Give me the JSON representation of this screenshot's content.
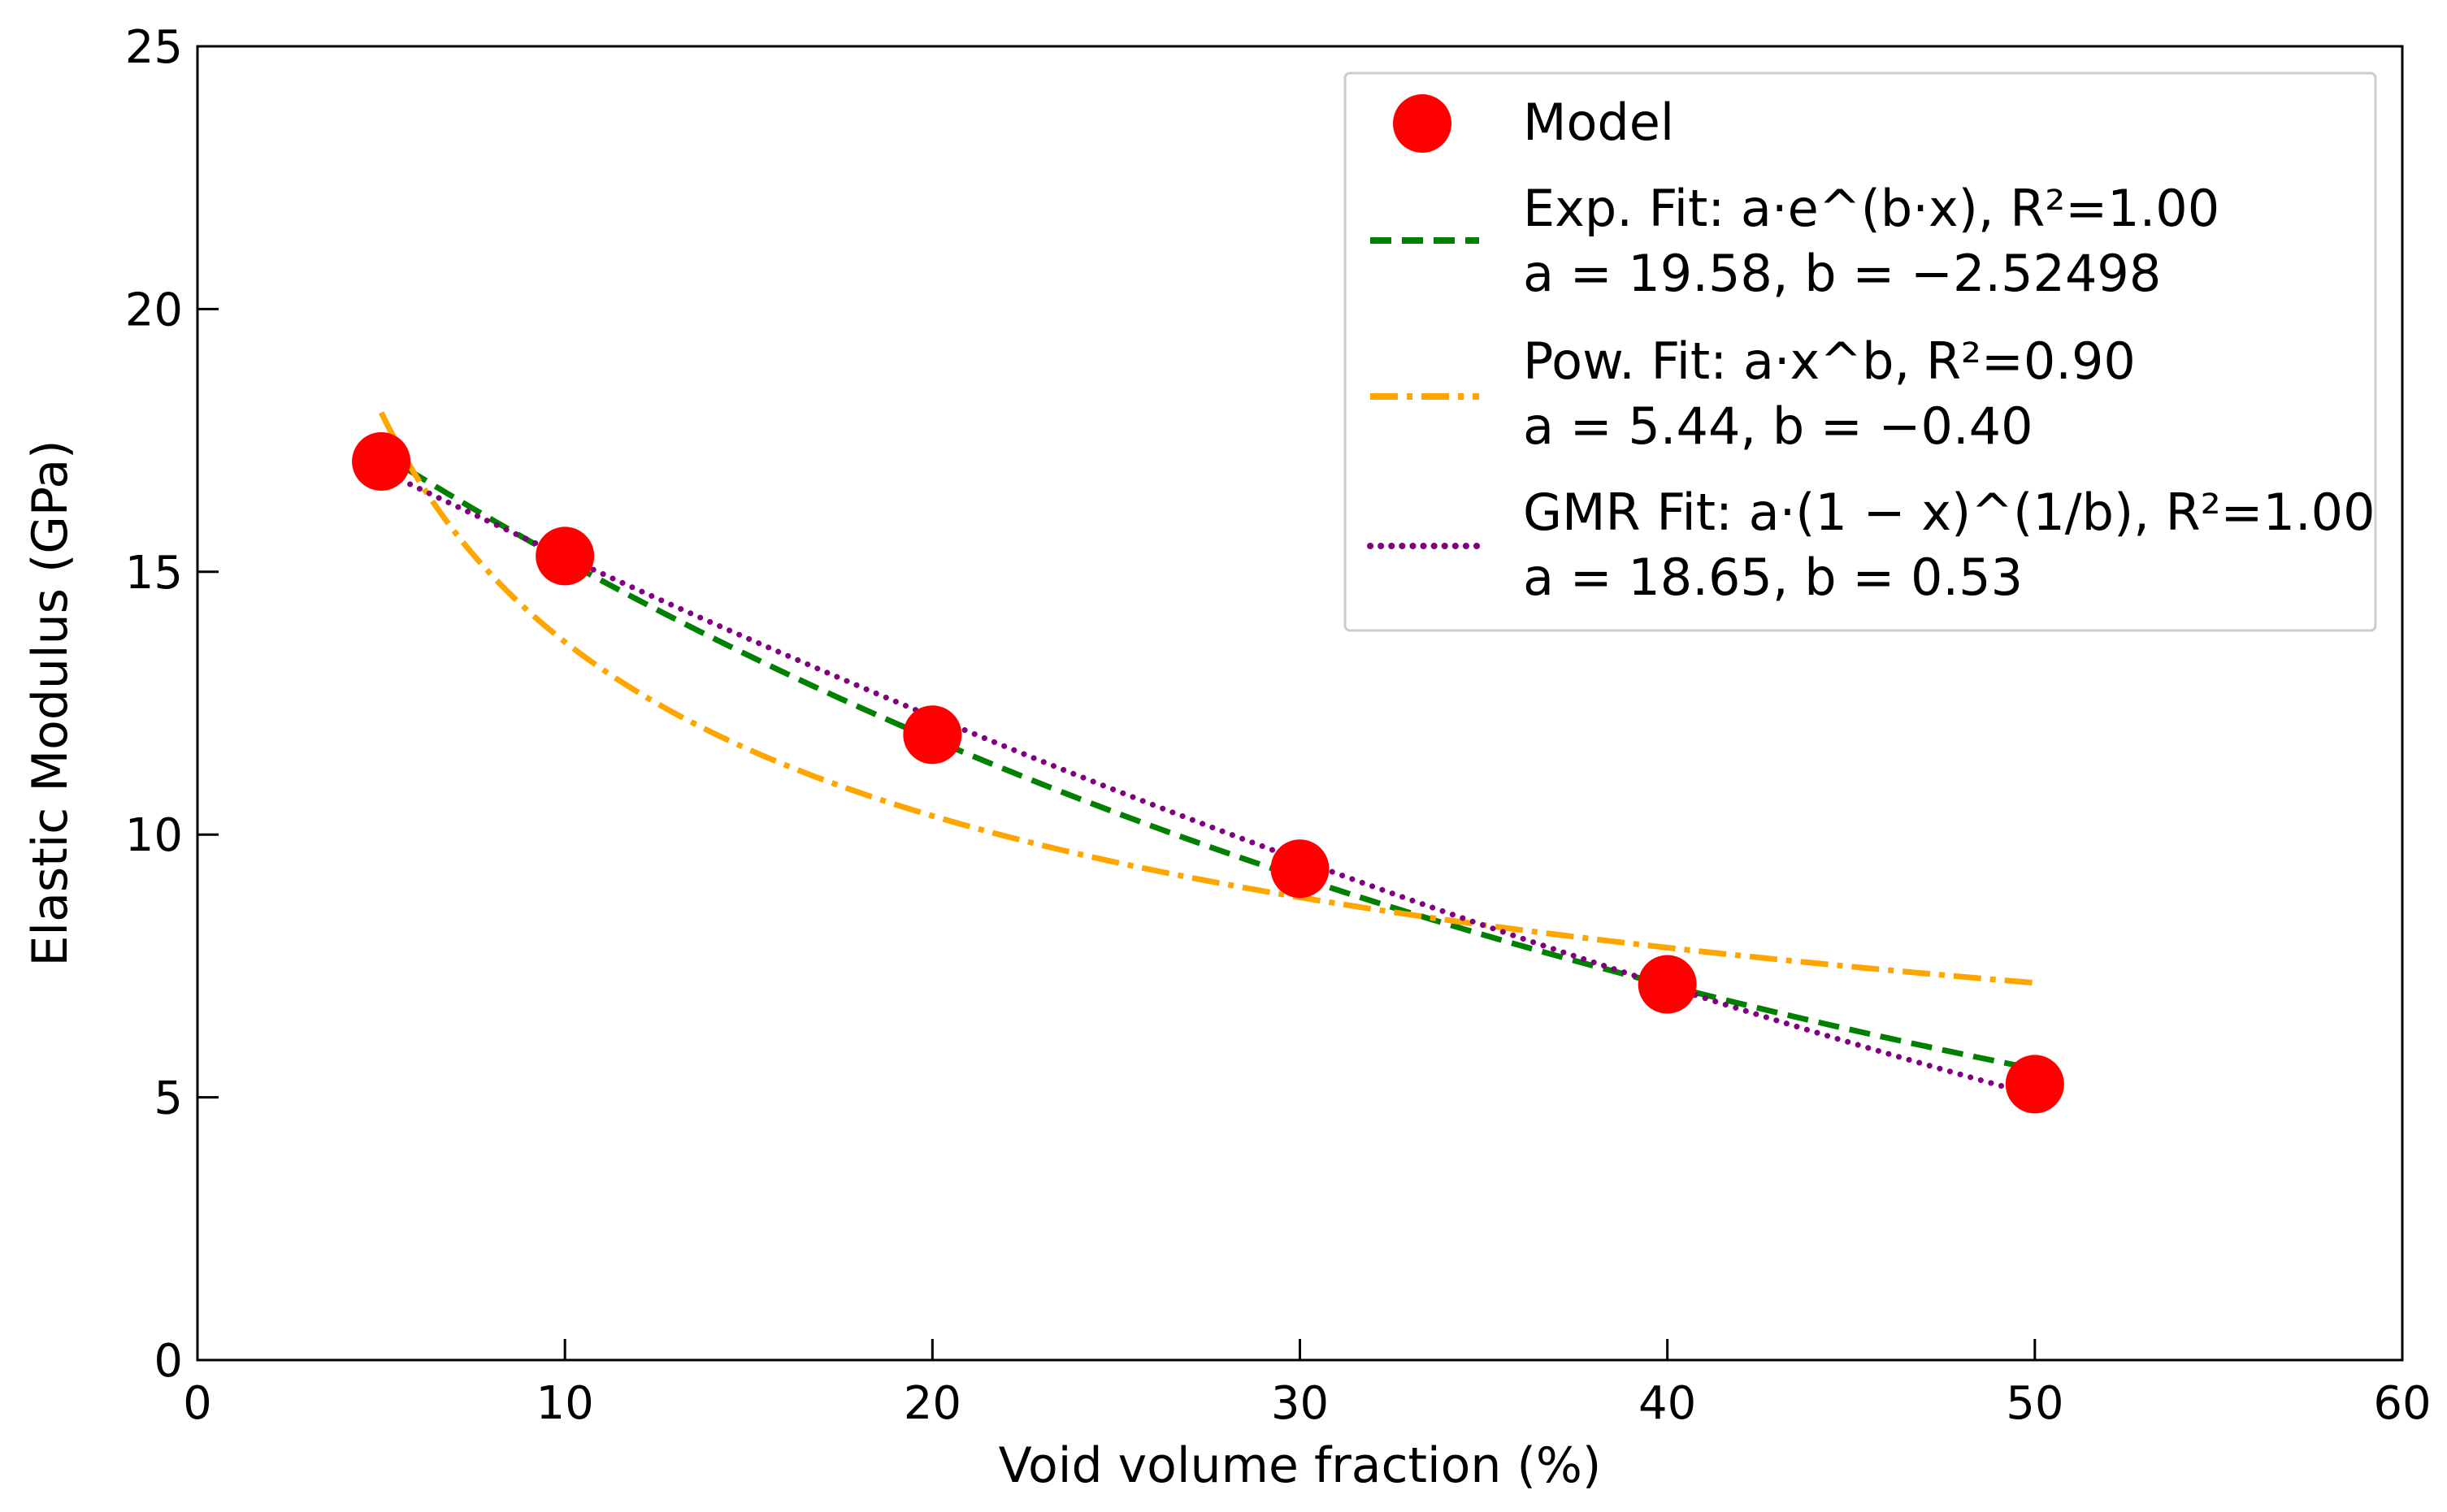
{
  "chart_data": {
    "type": "scatter",
    "title": "",
    "xlabel": "Void volume fraction (%)",
    "ylabel": "Elastic Modulus (GPa)",
    "xlim": [
      0,
      60
    ],
    "ylim": [
      0,
      25
    ],
    "xticks": [
      0,
      10,
      20,
      30,
      40,
      50,
      60
    ],
    "yticks": [
      0,
      5,
      10,
      15,
      20,
      25
    ],
    "grid": false,
    "legend_position": "top-right",
    "colors": {
      "model": "#ff0000",
      "exp": "#008000",
      "pow": "#ffa500",
      "gmr": "#800080"
    },
    "model": {
      "name": "Model",
      "x": [
        5,
        10,
        20,
        30,
        40,
        50
      ],
      "y": [
        17.1,
        15.3,
        11.9,
        9.35,
        7.15,
        5.25
      ]
    },
    "fits": [
      {
        "key": "exp",
        "kind": "exponential",
        "label_line1": "Exp. Fit: a·e^(b·x), R²=1.00",
        "label_line2": "a = 19.58, b = −2.52498",
        "a": 19.58,
        "b": -2.52498,
        "x_range": [
          5,
          50
        ]
      },
      {
        "key": "pow",
        "kind": "power",
        "label_line1": "Pow. Fit: a·x^b, R²=0.90",
        "label_line2": "a = 5.44, b = −0.40",
        "a": 5.44,
        "b": -0.4,
        "x_range": [
          5,
          50
        ]
      },
      {
        "key": "gmr",
        "kind": "gmr",
        "label_line1": "GMR Fit: a·(1 − x)^(1/b), R²=1.00",
        "label_line2": "a = 18.65, b = 0.53",
        "a": 18.65,
        "b": 0.53,
        "x_range": [
          5,
          50
        ]
      }
    ]
  }
}
